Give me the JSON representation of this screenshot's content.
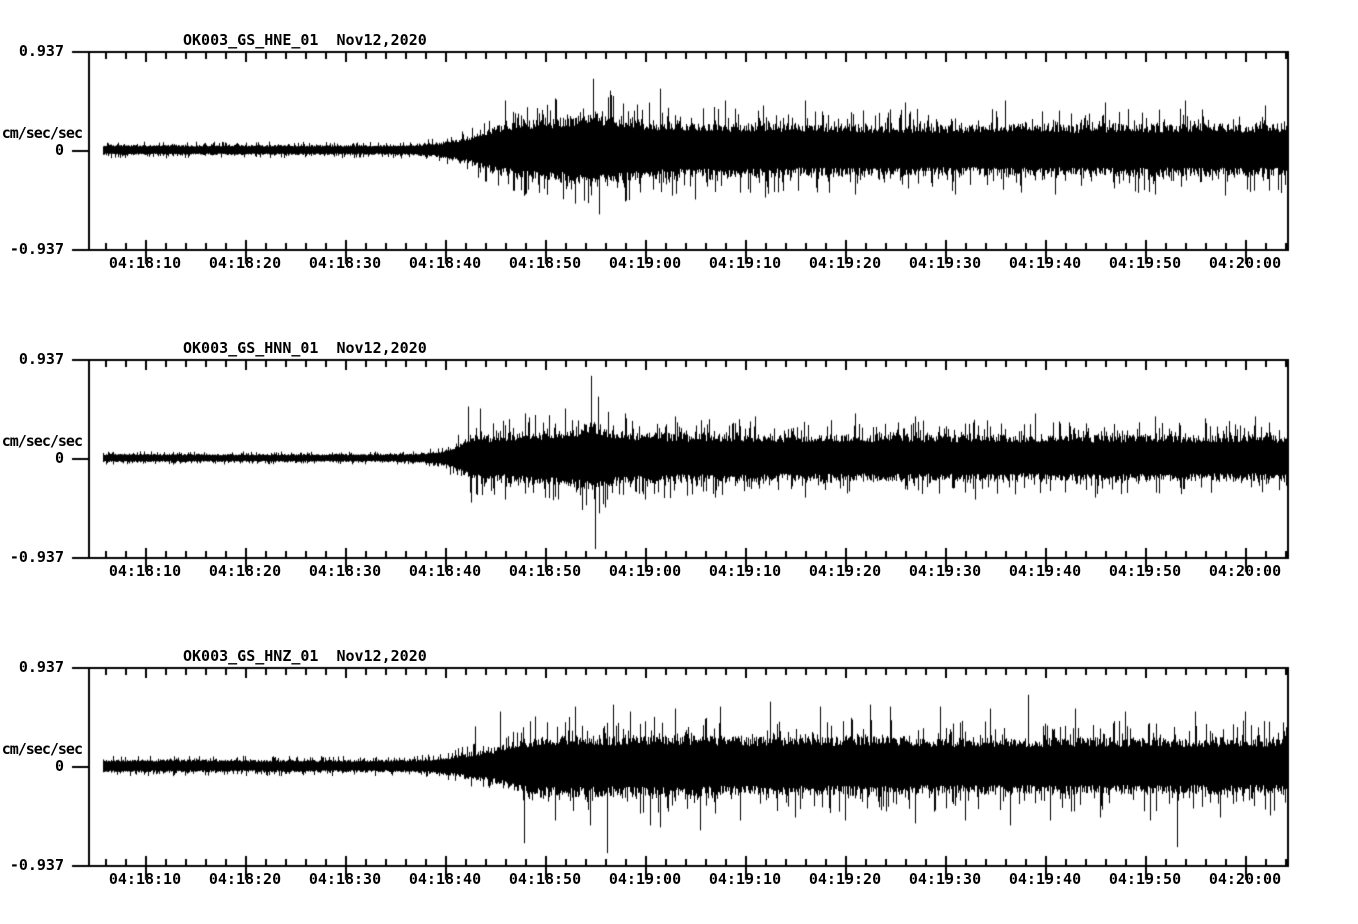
{
  "figure": {
    "background": "#ffffff",
    "trace_color": "#000000"
  },
  "panels": [
    {
      "title": {
        "station": "OK003_GS_HNE_01",
        "date": "Nov12,2020"
      }
    },
    {
      "title": {
        "station": "OK003_GS_HNN_01",
        "date": "Nov12,2020"
      }
    },
    {
      "title": {
        "station": "OK003_GS_HNZ_01",
        "date": "Nov12,2020"
      }
    }
  ],
  "axis": {
    "ylabel": "cm/sec/sec",
    "yticks": [
      "0.937",
      "0",
      "-0.937"
    ],
    "xticklabels": [
      "04:18:10",
      "04:18:20",
      "04:18:30",
      "04:18:40",
      "04:18:50",
      "04:19:00",
      "04:19:10",
      "04:19:20",
      "04:19:30",
      "04:19:40",
      "04:19:50",
      "04:20:00"
    ]
  },
  "chart_data": {
    "type": "line",
    "subtype": "seismogram-3-component",
    "title": "OK003_GS strong-motion accelerograms, Nov12,2020",
    "ylabel": "cm/sec/sec",
    "ylim": [
      -0.937,
      0.937
    ],
    "yticks": [
      0.937,
      0,
      -0.937
    ],
    "fullscale_cm_per_s2": 0.937,
    "x_start": "04:18:04",
    "x_end": "04:20:04",
    "x_major_tick_s": 10,
    "x_minor_tick_s": 2,
    "t0_label": "04:18:10",
    "amplitude_units": "fraction_of_fullscale",
    "time_units": "seconds_after_04:18:10",
    "series": [
      {
        "name": "OK003_GS_HNE_01",
        "channel": "HNE",
        "date": "Nov12,2020",
        "seed": 101,
        "envelope": [
          [
            -6,
            0.05
          ],
          [
            15,
            0.05
          ],
          [
            24,
            0.048
          ],
          [
            27,
            0.055
          ],
          [
            29,
            0.07
          ],
          [
            31,
            0.1
          ],
          [
            33,
            0.16
          ],
          [
            35,
            0.23
          ],
          [
            37,
            0.28
          ],
          [
            40,
            0.3
          ],
          [
            43,
            0.33
          ],
          [
            45,
            0.36
          ],
          [
            47,
            0.32
          ],
          [
            50,
            0.29
          ],
          [
            54,
            0.27
          ],
          [
            58,
            0.26
          ],
          [
            62,
            0.27
          ],
          [
            66,
            0.25
          ],
          [
            70,
            0.26
          ],
          [
            74,
            0.24
          ],
          [
            78,
            0.25
          ],
          [
            82,
            0.24
          ],
          [
            86,
            0.26
          ],
          [
            90,
            0.25
          ],
          [
            94,
            0.24
          ],
          [
            98,
            0.26
          ],
          [
            102,
            0.25
          ],
          [
            106,
            0.26
          ],
          [
            110,
            0.25
          ],
          [
            114,
            0.26
          ]
        ],
        "spikes": [
          [
            36,
            0.5
          ],
          [
            38,
            -0.45
          ],
          [
            41,
            0.52
          ],
          [
            43,
            -0.5
          ],
          [
            44.8,
            0.72
          ],
          [
            45.4,
            -0.65
          ],
          [
            46.5,
            0.6
          ],
          [
            48,
            -0.52
          ],
          [
            51.5,
            0.62
          ],
          [
            55,
            -0.5
          ],
          [
            58,
            0.5
          ],
          [
            62,
            -0.48
          ],
          [
            66,
            0.5
          ],
          [
            71,
            -0.45
          ],
          [
            76,
            0.48
          ],
          [
            81,
            -0.45
          ],
          [
            86,
            0.5
          ],
          [
            91,
            -0.45
          ],
          [
            96,
            0.48
          ],
          [
            101,
            -0.45
          ],
          [
            104,
            0.5
          ],
          [
            108,
            -0.46
          ],
          [
            112,
            0.45
          ]
        ]
      },
      {
        "name": "OK003_GS_HNN_01",
        "channel": "HNN",
        "date": "Nov12,2020",
        "seed": 202,
        "envelope": [
          [
            -6,
            0.04
          ],
          [
            20,
            0.038
          ],
          [
            26,
            0.04
          ],
          [
            28,
            0.05
          ],
          [
            30,
            0.08
          ],
          [
            31.5,
            0.15
          ],
          [
            33,
            0.24
          ],
          [
            35,
            0.22
          ],
          [
            37,
            0.25
          ],
          [
            39,
            0.26
          ],
          [
            41,
            0.27
          ],
          [
            43,
            0.3
          ],
          [
            45,
            0.35
          ],
          [
            46.5,
            0.28
          ],
          [
            49,
            0.25
          ],
          [
            52,
            0.24
          ],
          [
            56,
            0.23
          ],
          [
            60,
            0.24
          ],
          [
            64,
            0.22
          ],
          [
            68,
            0.23
          ],
          [
            72,
            0.22
          ],
          [
            76,
            0.23
          ],
          [
            80,
            0.22
          ],
          [
            84,
            0.23
          ],
          [
            88,
            0.22
          ],
          [
            92,
            0.23
          ],
          [
            96,
            0.22
          ],
          [
            100,
            0.23
          ],
          [
            104,
            0.22
          ],
          [
            108,
            0.22
          ],
          [
            112,
            0.22
          ],
          [
            114,
            0.22
          ]
        ],
        "spikes": [
          [
            32.3,
            0.52
          ],
          [
            32.6,
            -0.45
          ],
          [
            33.5,
            0.5
          ],
          [
            36,
            -0.42
          ],
          [
            38,
            0.45
          ],
          [
            40,
            -0.4
          ],
          [
            42,
            0.5
          ],
          [
            44.6,
            0.83
          ],
          [
            45,
            -0.92
          ],
          [
            45.3,
            0.62
          ],
          [
            46,
            -0.5
          ],
          [
            48,
            0.45
          ],
          [
            50,
            -0.42
          ],
          [
            53,
            0.42
          ],
          [
            57,
            -0.4
          ],
          [
            61,
            0.42
          ],
          [
            66,
            -0.4
          ],
          [
            71,
            0.45
          ],
          [
            77,
            0.42
          ],
          [
            83,
            -0.42
          ],
          [
            89,
            0.45
          ],
          [
            95,
            -0.4
          ],
          [
            101,
            0.42
          ],
          [
            106,
            0.4
          ],
          [
            111,
            0.42
          ]
        ]
      },
      {
        "name": "OK003_GS_HNZ_01",
        "channel": "HNZ",
        "date": "Nov12,2020",
        "seed": 303,
        "envelope": [
          [
            -6,
            0.065
          ],
          [
            15,
            0.06
          ],
          [
            24,
            0.06
          ],
          [
            27,
            0.065
          ],
          [
            29,
            0.08
          ],
          [
            31,
            0.1
          ],
          [
            33,
            0.14
          ],
          [
            35,
            0.18
          ],
          [
            37,
            0.24
          ],
          [
            39,
            0.28
          ],
          [
            42,
            0.3
          ],
          [
            45,
            0.3
          ],
          [
            48,
            0.29
          ],
          [
            52,
            0.31
          ],
          [
            56,
            0.29
          ],
          [
            60,
            0.28
          ],
          [
            64,
            0.29
          ],
          [
            68,
            0.28
          ],
          [
            72,
            0.29
          ],
          [
            76,
            0.28
          ],
          [
            80,
            0.27
          ],
          [
            84,
            0.28
          ],
          [
            88,
            0.27
          ],
          [
            92,
            0.28
          ],
          [
            96,
            0.27
          ],
          [
            100,
            0.28
          ],
          [
            104,
            0.27
          ],
          [
            108,
            0.28
          ],
          [
            112,
            0.27
          ],
          [
            114,
            0.28
          ]
        ],
        "spikes": [
          [
            33,
            0.4
          ],
          [
            35.5,
            0.55
          ],
          [
            37.9,
            -0.78
          ],
          [
            39,
            0.5
          ],
          [
            41,
            -0.55
          ],
          [
            43,
            0.6
          ],
          [
            44.5,
            -0.6
          ],
          [
            46.2,
            -0.88
          ],
          [
            46.8,
            0.62
          ],
          [
            48.5,
            0.55
          ],
          [
            50.5,
            -0.6
          ],
          [
            51.5,
            -0.62
          ],
          [
            53,
            0.58
          ],
          [
            55.5,
            -0.65
          ],
          [
            57.5,
            0.6
          ],
          [
            59.5,
            -0.55
          ],
          [
            62.5,
            0.65
          ],
          [
            65,
            -0.52
          ],
          [
            67.5,
            0.6
          ],
          [
            70,
            -0.55
          ],
          [
            72.5,
            0.62
          ],
          [
            74.5,
            0.6
          ],
          [
            77,
            -0.58
          ],
          [
            79.5,
            0.6
          ],
          [
            82,
            -0.55
          ],
          [
            84.5,
            0.58
          ],
          [
            86.5,
            -0.6
          ],
          [
            88.3,
            0.72
          ],
          [
            90.5,
            -0.55
          ],
          [
            93,
            0.58
          ],
          [
            95.5,
            -0.52
          ],
          [
            98,
            0.55
          ],
          [
            100.5,
            -0.55
          ],
          [
            103.2,
            -0.82
          ],
          [
            105,
            0.55
          ],
          [
            107.5,
            -0.52
          ],
          [
            110,
            0.55
          ],
          [
            112.5,
            -0.5
          ]
        ]
      }
    ]
  }
}
